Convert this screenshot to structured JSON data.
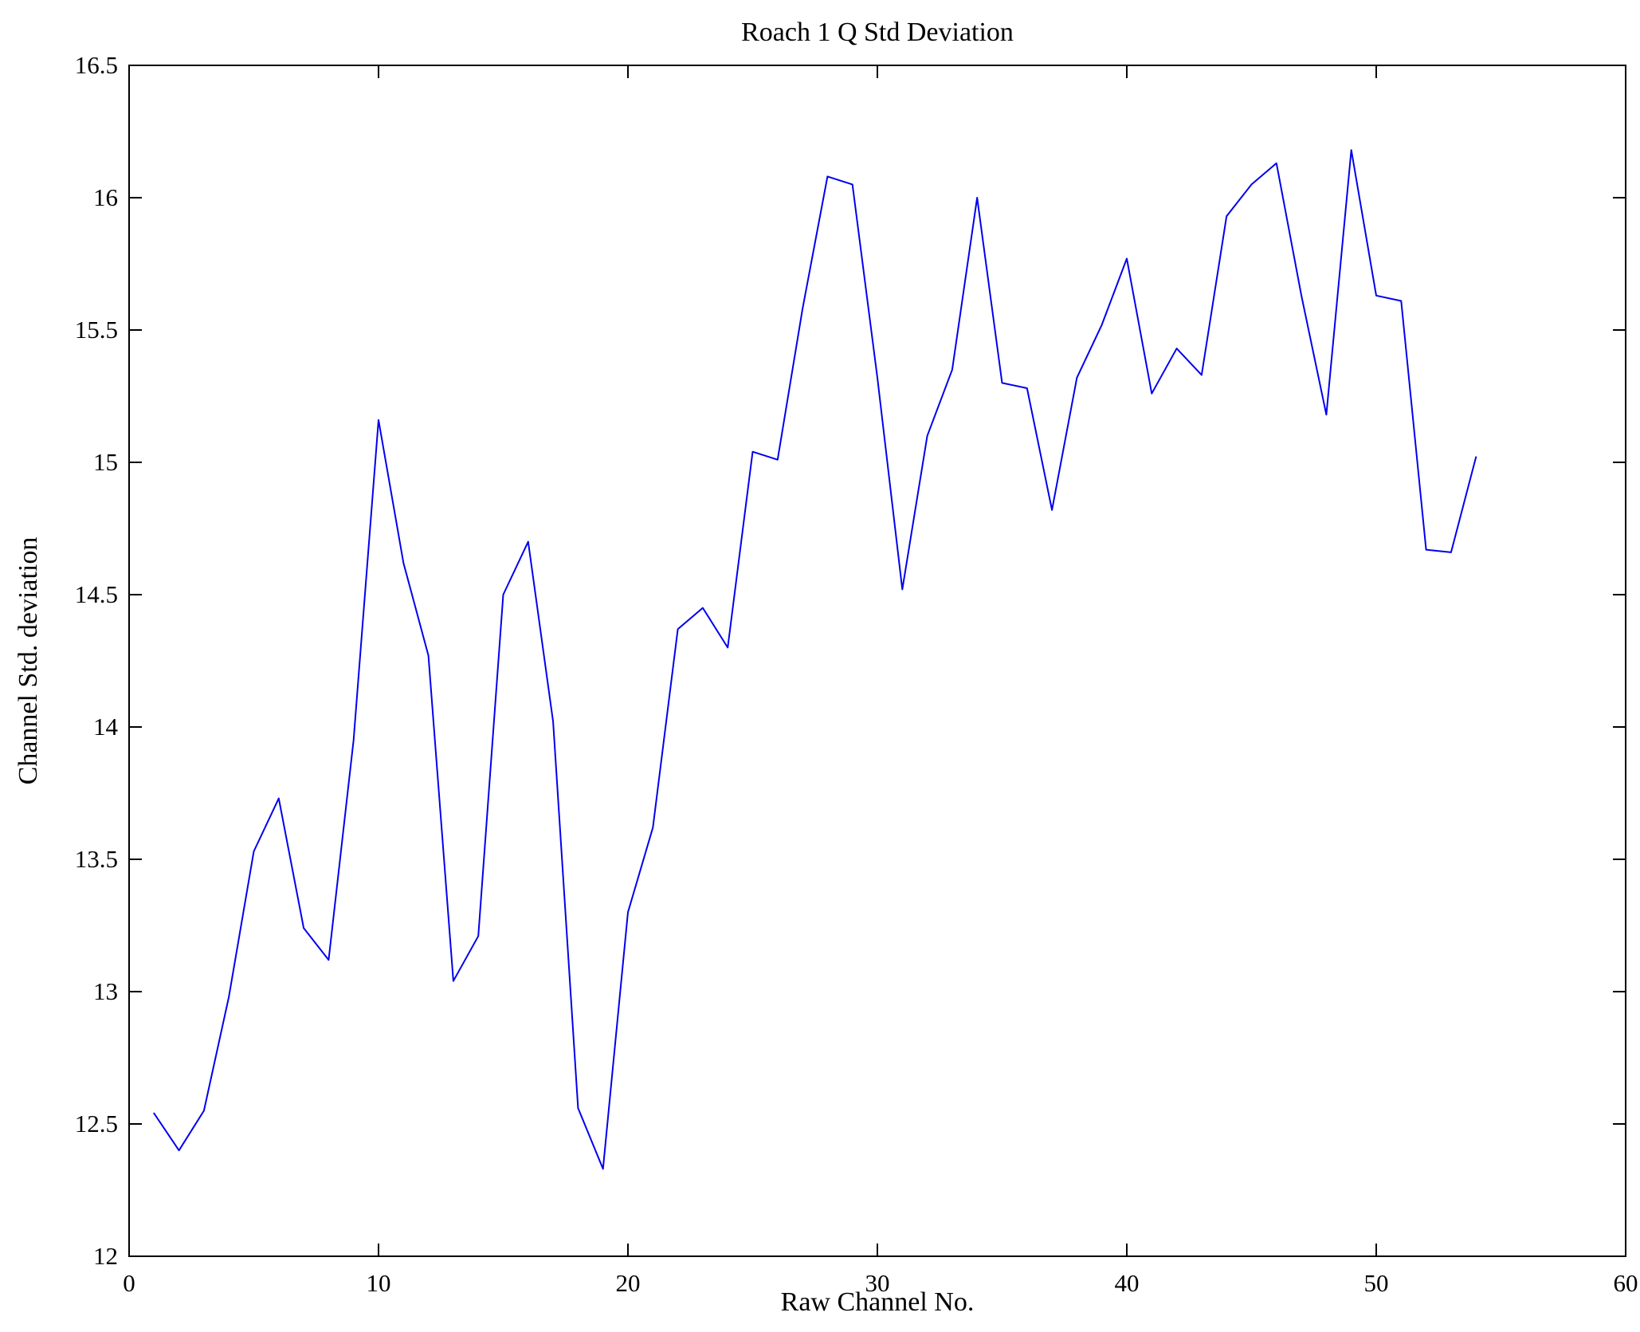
{
  "figure": {
    "background": "#ffffff",
    "frame_color": "#000000"
  },
  "chart_data": {
    "type": "line",
    "title": "Roach 1 Q Std Deviation",
    "xlabel": "Raw Channel No.",
    "ylabel": "Channel Std. deviation",
    "xlim": [
      0,
      60
    ],
    "ylim": [
      12,
      16.5
    ],
    "x_ticks": [
      0,
      10,
      20,
      30,
      40,
      50,
      60
    ],
    "y_ticks": [
      12,
      12.5,
      13,
      13.5,
      14,
      14.5,
      15,
      15.5,
      16,
      16.5
    ],
    "grid": false,
    "legend": null,
    "series_color": "#0000ee",
    "x": [
      1,
      2,
      3,
      4,
      5,
      6,
      7,
      8,
      9,
      10,
      11,
      12,
      13,
      14,
      15,
      16,
      17,
      18,
      19,
      20,
      21,
      22,
      23,
      24,
      25,
      26,
      27,
      28,
      29,
      30,
      31,
      32,
      33,
      34,
      35,
      36,
      37,
      38,
      39,
      40,
      41,
      42,
      43,
      44,
      45,
      46,
      47,
      48,
      49,
      50,
      51,
      52,
      53,
      54
    ],
    "y": [
      12.54,
      12.4,
      12.55,
      12.98,
      13.53,
      13.73,
      13.24,
      13.12,
      13.95,
      15.16,
      14.62,
      14.27,
      13.04,
      13.21,
      14.5,
      14.7,
      14.02,
      12.56,
      12.33,
      13.3,
      13.62,
      14.37,
      14.45,
      14.3,
      15.04,
      15.01,
      15.58,
      16.08,
      16.05,
      15.32,
      14.52,
      15.1,
      15.35,
      16.0,
      15.3,
      15.28,
      14.82,
      15.32,
      15.52,
      15.77,
      15.26,
      15.43,
      15.33,
      15.93,
      16.05,
      16.13,
      15.63,
      15.18,
      16.18,
      15.63,
      15.61,
      14.67,
      14.66,
      15.02
    ]
  }
}
